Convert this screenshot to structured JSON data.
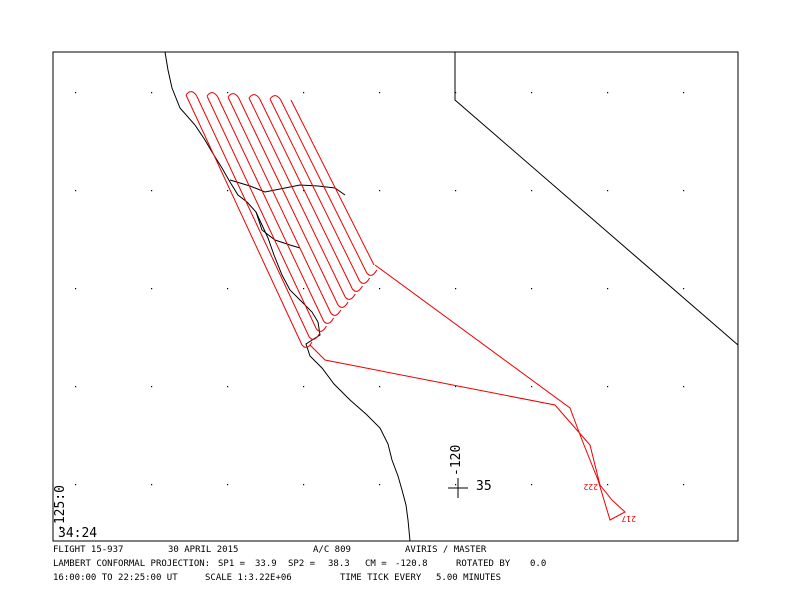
{
  "map_labels": {
    "lon_left": "-125:0",
    "lat_bottom": "34:24",
    "lon_cross": "-120",
    "lat_cross": "35"
  },
  "track_labels": [
    "222",
    "217"
  ],
  "footer": {
    "line1": [
      "FLIGHT 15-937",
      "30 APRIL 2015",
      "A/C 809",
      "AVIRIS / MASTER"
    ],
    "line2": [
      "LAMBERT CONFORMAL PROJECTION:",
      "SP1 =",
      "33.9",
      "SP2 =",
      "38.3",
      "CM =",
      "-120.8",
      "ROTATED BY",
      "0.0"
    ],
    "line3": [
      "16:00:00 TO 22:25:00 UT",
      "SCALE 1:3.22E+06",
      "TIME TICK EVERY",
      "5.00 MINUTES"
    ]
  }
}
